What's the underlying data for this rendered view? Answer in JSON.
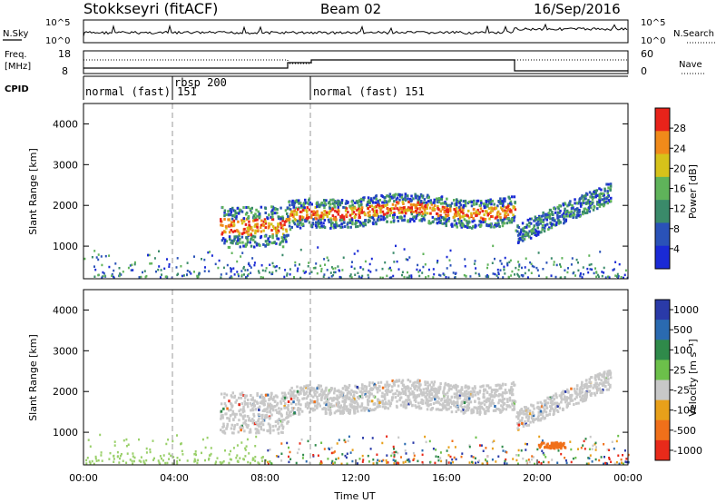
{
  "header": {
    "station": "Stokkseyri (fitACF)",
    "beam": "Beam 02",
    "date": "16/Sep/2016"
  },
  "noise_panel": {
    "left_label": "N.Sky",
    "right_label": "N.Search",
    "left_ticks": [
      "10^5",
      "10^0"
    ],
    "right_ticks": [
      "10^5",
      "10^0"
    ]
  },
  "freq_panel": {
    "left_label_1": "Freq.",
    "left_label_2": "[MHz]",
    "right_label": "Nave",
    "left_ticks": [
      "18",
      "8"
    ],
    "right_ticks": [
      "60",
      "0"
    ]
  },
  "cpid_panel": {
    "label": "CPID",
    "segments": [
      {
        "text": "normal (fast) 151"
      },
      {
        "text": "rbsp 200"
      },
      {
        "text": "normal (fast) 151"
      }
    ]
  },
  "chart_data": [
    {
      "type": "heatmap",
      "name": "power",
      "xlabel": "",
      "ylabel": "Slant Range [km]",
      "x_range": [
        "00:00",
        "24:00"
      ],
      "ylim": [
        200,
        4500
      ],
      "y_ticks": [
        "1000",
        "2000",
        "3000",
        "4000"
      ],
      "colorbar_label": "Power [dB]",
      "colorbar_ticks": [
        "4",
        "8",
        "12",
        "16",
        "20",
        "24",
        "28"
      ],
      "colorbar_range": [
        0,
        30
      ],
      "colors": [
        "#1a2ad6",
        "#2a52b8",
        "#3a8a6a",
        "#5fb35a",
        "#d6c21a",
        "#f08a1a",
        "#e8231a"
      ]
    },
    {
      "type": "heatmap",
      "name": "velocity",
      "xlabel": "Time UT",
      "ylabel": "Slant Range [km]",
      "x_ticks": [
        "00:00",
        "04:00",
        "08:00",
        "12:00",
        "16:00",
        "20:00",
        "00:00"
      ],
      "ylim": [
        200,
        4500
      ],
      "y_ticks": [
        "1000",
        "2000",
        "3000",
        "4000"
      ],
      "colorbar_label": "Velocity [m s⁻¹]",
      "colorbar_ticks": [
        "1000",
        "500",
        "100",
        "25",
        "-25",
        "-100",
        "-500",
        "-1000"
      ],
      "colors": [
        "#2a3aa8",
        "#2a6ab0",
        "#2f8a4a",
        "#6cc04a",
        "#c8c8c8",
        "#e8a01a",
        "#f0701a",
        "#e82a1a"
      ]
    }
  ]
}
